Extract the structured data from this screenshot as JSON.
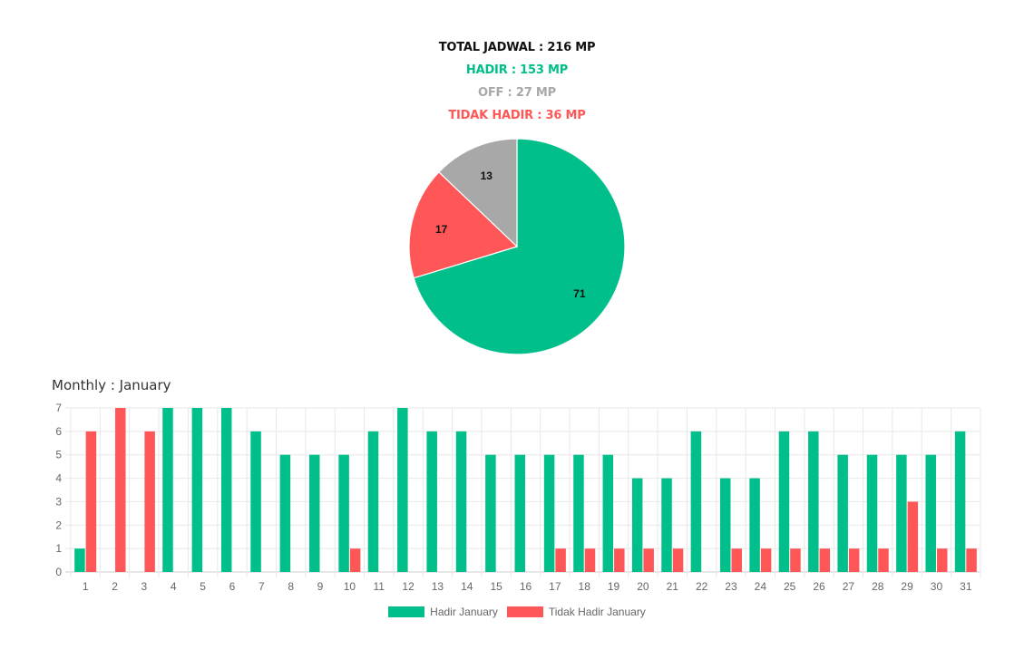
{
  "summary": {
    "total": "TOTAL JADWAL : 216 MP",
    "hadir": "HADIR : 153 MP",
    "off": "OFF : 27 MP",
    "tidak_hadir": "TIDAK HADIR : 36 MP"
  },
  "colors": {
    "hadir": "#00bf8a",
    "off": "#a8a8a8",
    "tidak_hadir": "#ff5757",
    "total": "#111111"
  },
  "chart_data": [
    {
      "type": "pie",
      "slices": [
        {
          "label": "71",
          "value": 71,
          "color": "#00bf8a"
        },
        {
          "label": "17",
          "value": 17,
          "color": "#ff5757"
        },
        {
          "label": "13",
          "value": 13,
          "color": "#a8a8a8"
        }
      ]
    },
    {
      "type": "bar",
      "title": "Monthly : January",
      "categories": [
        "1",
        "2",
        "3",
        "4",
        "5",
        "6",
        "7",
        "8",
        "9",
        "10",
        "11",
        "12",
        "13",
        "14",
        "15",
        "16",
        "17",
        "18",
        "19",
        "20",
        "21",
        "22",
        "23",
        "24",
        "25",
        "26",
        "27",
        "28",
        "29",
        "30",
        "31"
      ],
      "series": [
        {
          "name": "Hadir January",
          "color": "#00bf8a",
          "values": [
            1,
            0,
            0,
            7,
            7,
            7,
            6,
            5,
            5,
            5,
            6,
            7,
            6,
            6,
            5,
            5,
            5,
            5,
            5,
            4,
            4,
            6,
            4,
            4,
            6,
            6,
            5,
            5,
            5,
            5,
            6
          ]
        },
        {
          "name": "Tidak Hadir January",
          "color": "#ff5757",
          "values": [
            6,
            7,
            6,
            0,
            0,
            0,
            0,
            0,
            0,
            1,
            0,
            0,
            0,
            0,
            0,
            0,
            1,
            1,
            1,
            1,
            1,
            0,
            1,
            1,
            1,
            1,
            1,
            1,
            3,
            1,
            1
          ]
        }
      ],
      "yticks": [
        "0",
        "1",
        "2",
        "3",
        "4",
        "5",
        "6",
        "7"
      ],
      "ylim": [
        0,
        7
      ],
      "grid": true,
      "legend_position": "bottom"
    }
  ]
}
